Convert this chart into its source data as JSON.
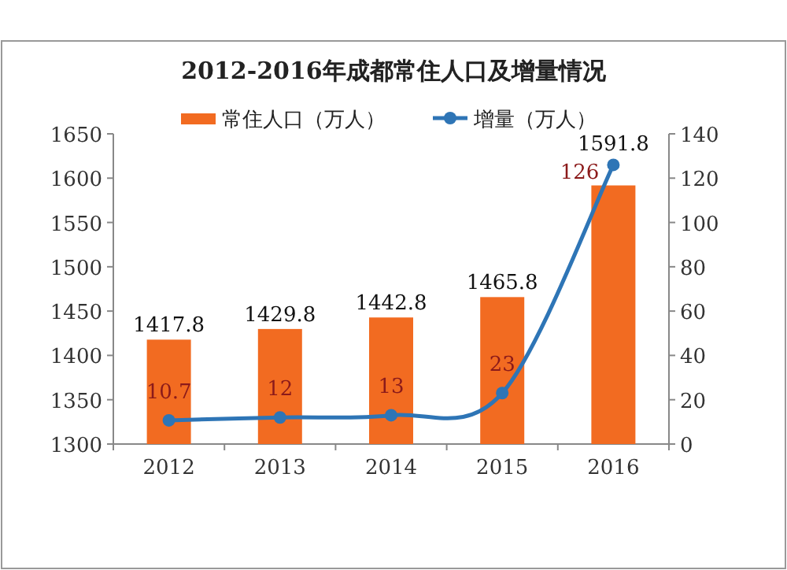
{
  "chart_data": {
    "type": "bar",
    "title": "2012-2016年成都常住人口及增量情况",
    "categories": [
      "2012",
      "2013",
      "2014",
      "2015",
      "2016"
    ],
    "series": [
      {
        "name": "常住人口（万人）",
        "color": "#f26b21",
        "values": [
          1417.8,
          1429.8,
          1442.8,
          1465.8,
          1591.8
        ]
      },
      {
        "name": "增量（万人）",
        "type": "line",
        "axis": "y2",
        "color": "#2e75b6",
        "values": [
          10.7,
          12,
          13,
          23,
          126
        ]
      }
    ],
    "ylim": [
      1300,
      1650
    ],
    "yticks": [
      1300,
      1350,
      1400,
      1450,
      1500,
      1550,
      1600,
      1650
    ],
    "y2lim": [
      0,
      140
    ],
    "y2ticks": [
      0,
      20,
      40,
      60,
      80,
      100,
      120,
      140
    ],
    "marker": "circle",
    "data_labels": true,
    "legend": "top",
    "grid": false
  }
}
